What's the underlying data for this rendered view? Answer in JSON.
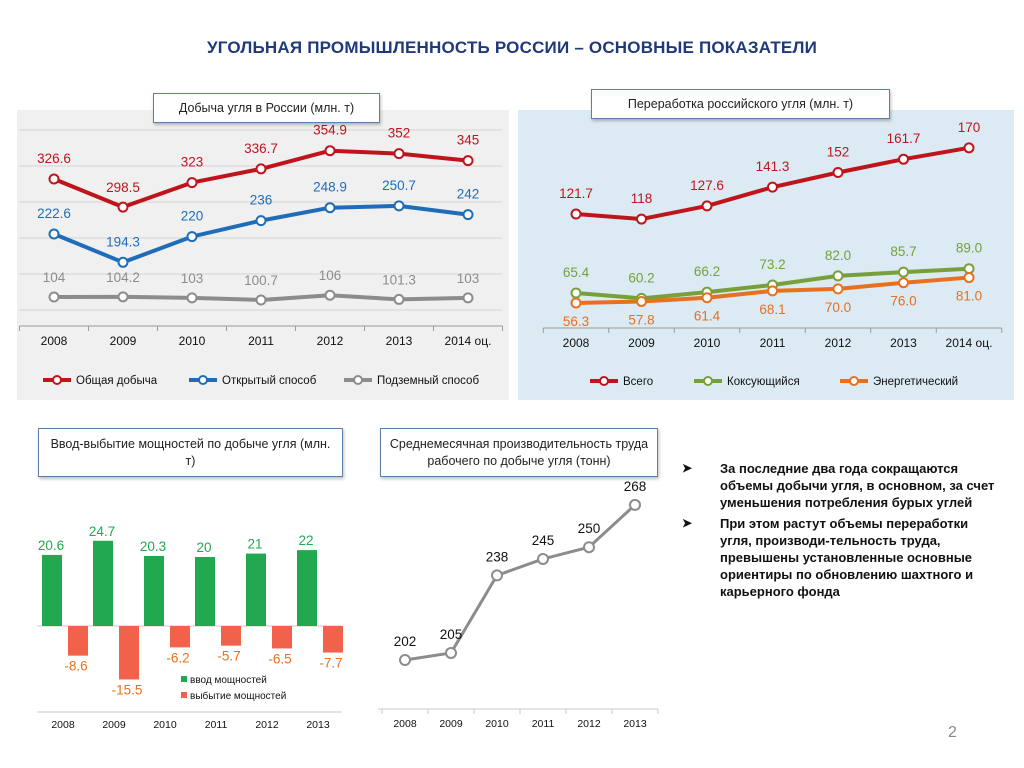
{
  "page": {
    "title": "УГОЛЬНАЯ ПРОМЫШЛЕННОСТЬ  РОССИИ – ОСНОВНЫЕ ПОКАЗАТЕЛИ",
    "page_number": "2",
    "bullets": [
      "За последние два года сокращаются объемы добычи угля, в основном, за счет уменьшения потребления бурых углей",
      "При этом растут объемы переработки угля, производи-тельность труда,  превышены установленные основные ориентиры по обновлению шахтного и  карьерного фонда"
    ],
    "bullet_icon": "arrow-bullet-icon"
  },
  "chart_data": [
    {
      "id": "production",
      "type": "line",
      "title": "Добыча угля в России (млн. т)",
      "categories": [
        "2008",
        "2009",
        "2010",
        "2011",
        "2012",
        "2013",
        "2014 оц."
      ],
      "series": [
        {
          "name": "Общая добыча",
          "values": [
            326.6,
            298.5,
            323,
            336.7,
            354.9,
            352,
            345
          ],
          "labels": [
            "326.6",
            "298.5",
            "323",
            "336.7",
            "354.9",
            "352",
            "345"
          ],
          "color": "#c0141c"
        },
        {
          "name": "Открытый способ",
          "values": [
            222.6,
            194.3,
            220,
            236,
            248.9,
            250.7,
            242
          ],
          "labels": [
            "222.6",
            "194.3",
            "220",
            "236",
            "248.9",
            "250.7",
            "242"
          ],
          "color": "#1f6db8"
        },
        {
          "name": "Подземный способ",
          "values": [
            104,
            104.2,
            103,
            100.7,
            106,
            101.3,
            103
          ],
          "labels": [
            "104",
            "104.2",
            "103",
            "100.7",
            "106",
            "101.3",
            "103"
          ],
          "color": "#8c8c8c"
        }
      ],
      "legend_position": "bottom"
    },
    {
      "id": "processing",
      "type": "line",
      "title": "Переработка российского угля (млн. т)",
      "categories": [
        "2008",
        "2009",
        "2010",
        "2011",
        "2012",
        "2013",
        "2014 оц."
      ],
      "series": [
        {
          "name": "Всего",
          "values": [
            121.7,
            118,
            127.6,
            141.3,
            152,
            161.7,
            170
          ],
          "labels": [
            "121.7",
            "118",
            "127.6",
            "141.3",
            "152",
            "161.7",
            "170"
          ],
          "color": "#c0141c"
        },
        {
          "name": "Коксующийся",
          "values": [
            65.4,
            60.2,
            66.2,
            73.2,
            82.0,
            85.7,
            89.0
          ],
          "labels": [
            "65.4",
            "60.2",
            "66.2",
            "73.2",
            "82.0",
            "85.7",
            "89.0"
          ],
          "color": "#77a03a"
        },
        {
          "name": "Энергетический",
          "values": [
            56.3,
            57.8,
            61.4,
            68.1,
            70.0,
            76.0,
            81.0
          ],
          "labels": [
            "56.3",
            "57.8",
            "61.4",
            "68.1",
            "70.0",
            "76.0",
            "81.0"
          ],
          "color": "#e8701e"
        }
      ],
      "legend_position": "bottom"
    },
    {
      "id": "capacity",
      "type": "bar",
      "title": "Ввод-выбытие мощностей по добыче угля (млн. т)",
      "categories": [
        "2008",
        "2009",
        "2010",
        "2011",
        "2012",
        "2013"
      ],
      "series": [
        {
          "name": "ввод мощностей",
          "values": [
            20.6,
            24.7,
            20.3,
            20,
            21,
            22
          ],
          "labels": [
            "20.6",
            "24.7",
            "20.3",
            "20",
            "21",
            "22"
          ],
          "color": "#22a94f"
        },
        {
          "name": "выбытие мощностей",
          "values": [
            -8.6,
            -15.5,
            -6.2,
            -5.7,
            -6.5,
            -7.7
          ],
          "labels": [
            "-8.6",
            "-15.5",
            "-6.2",
            "-5.7",
            "-6.5",
            "-7.7"
          ],
          "color": "#f2624a"
        }
      ],
      "legend_position": "bottom-right"
    },
    {
      "id": "productivity",
      "type": "line",
      "title": "Среднемесячная производительность труда рабочего по добыче угля (тонн)",
      "categories": [
        "2008",
        "2009",
        "2010",
        "2011",
        "2012",
        "2013"
      ],
      "series": [
        {
          "values": [
            202,
            205,
            238,
            245,
            250,
            268
          ],
          "labels": [
            "202",
            "205",
            "238",
            "245",
            "250",
            "268"
          ],
          "color": "#8c8c8c"
        }
      ]
    }
  ]
}
